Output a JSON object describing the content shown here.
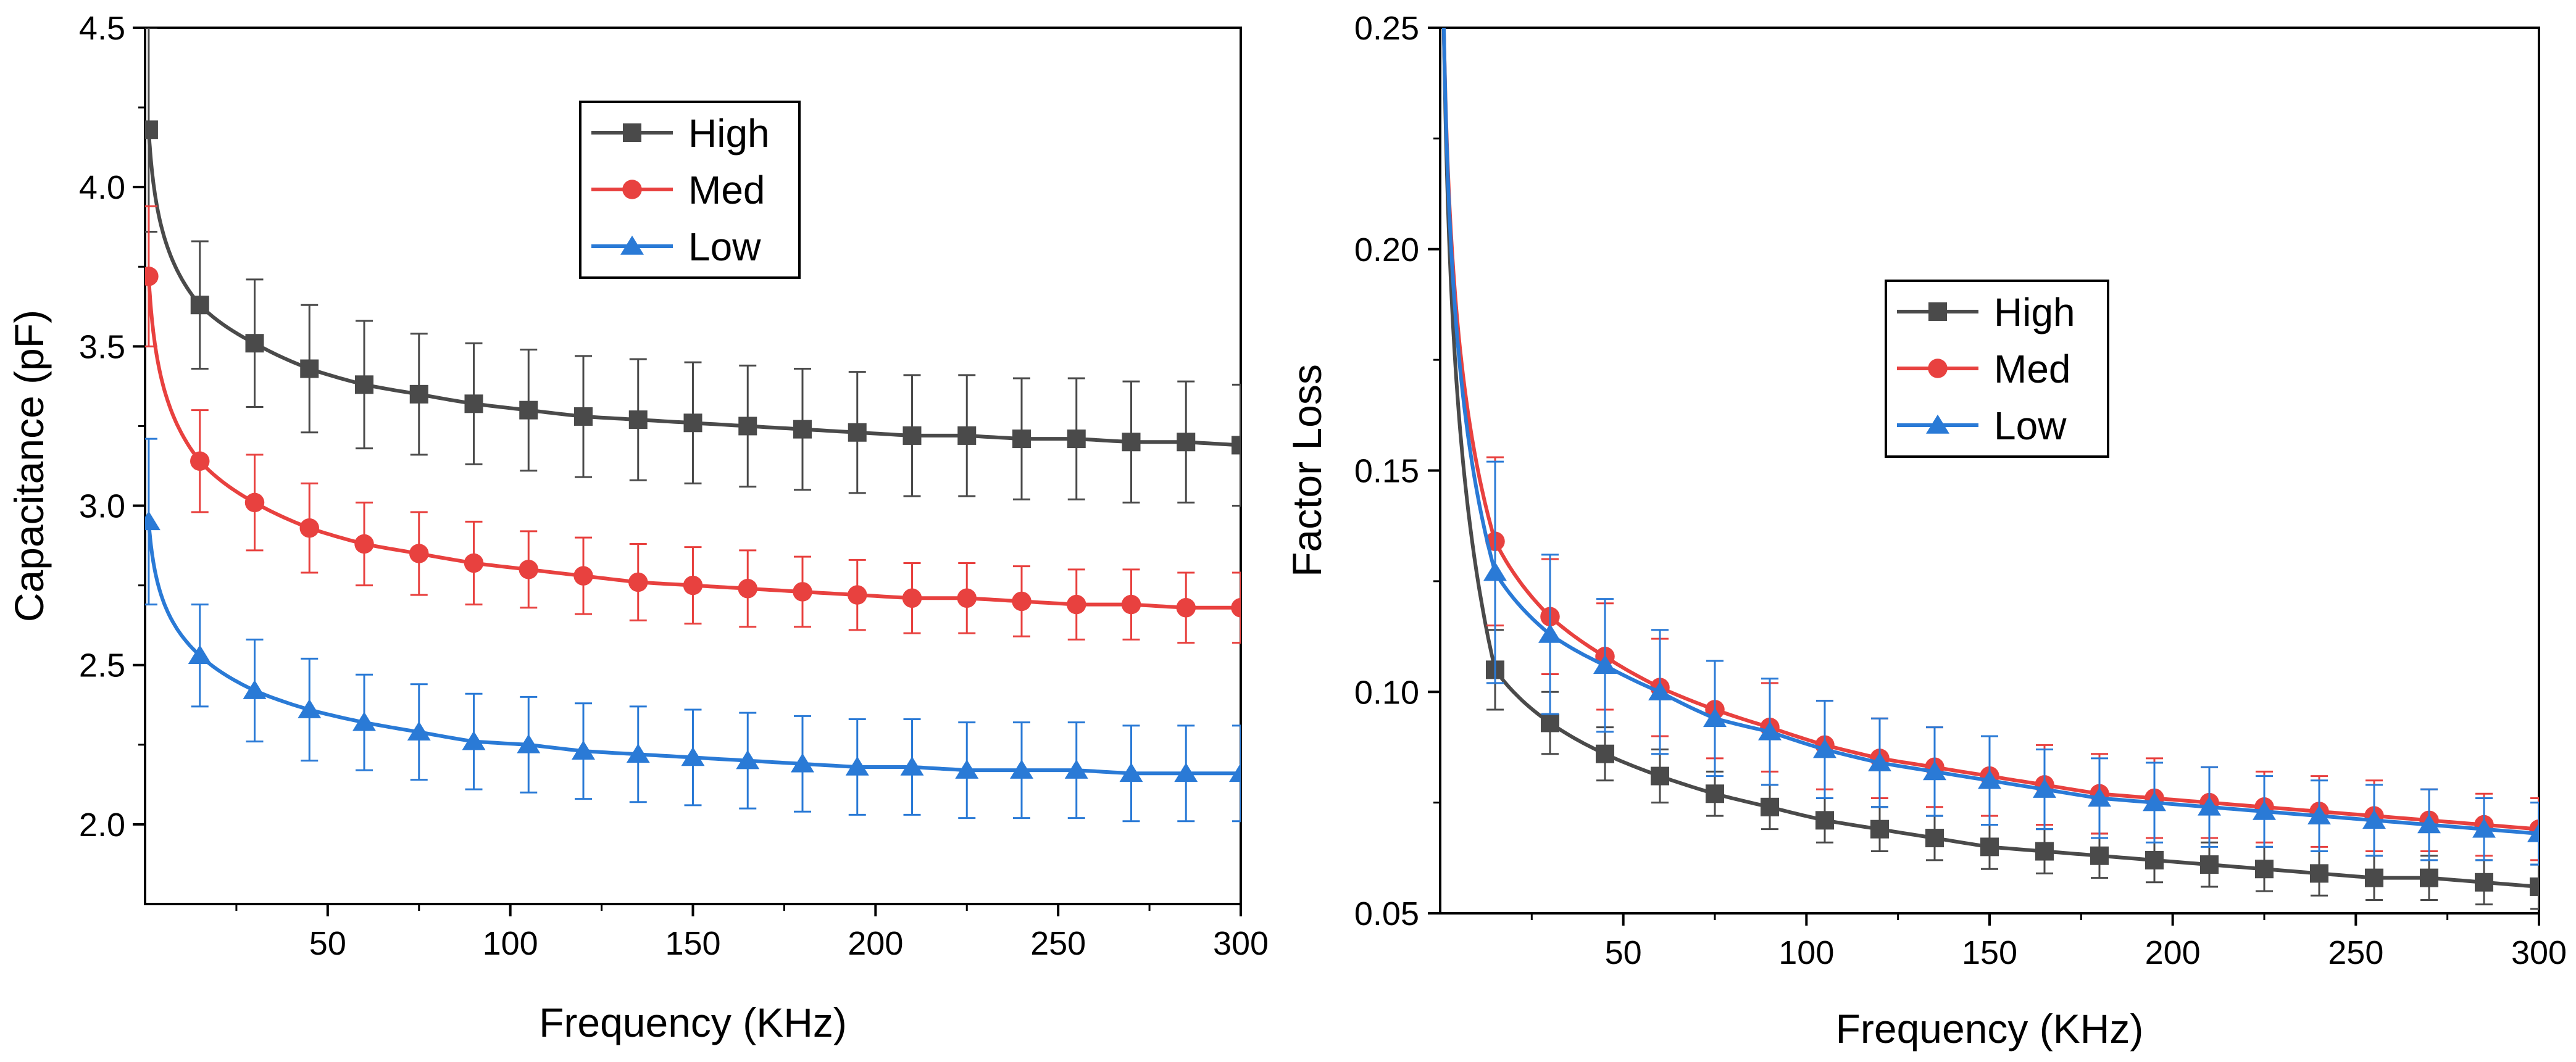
{
  "chart_data": [
    {
      "id": "capacitance",
      "type": "line",
      "title": "",
      "xlabel": "Frequency (KHz)",
      "ylabel": "Capacitance (pF)",
      "xlim": [
        0,
        300
      ],
      "ylim": [
        1.75,
        4.5
      ],
      "xticks": [
        50,
        100,
        150,
        200,
        250,
        300
      ],
      "xtick_labels": [
        "50",
        "100",
        "150",
        "200",
        "250",
        "300"
      ],
      "yticks": [
        2.0,
        2.5,
        3.0,
        3.5,
        4.0,
        4.5
      ],
      "ytick_labels": [
        "2.0",
        "2.5",
        "3.0",
        "3.5",
        "4.0",
        "4.5"
      ],
      "grid": false,
      "legend": "top-center",
      "x": [
        1,
        15,
        30,
        45,
        60,
        75,
        90,
        105,
        120,
        135,
        150,
        165,
        180,
        195,
        210,
        225,
        240,
        255,
        270,
        285,
        300
      ],
      "series": [
        {
          "name": "High",
          "color": "#4a4a4a",
          "marker": "square",
          "values": [
            4.18,
            3.63,
            3.51,
            3.43,
            3.38,
            3.35,
            3.32,
            3.3,
            3.28,
            3.27,
            3.26,
            3.25,
            3.24,
            3.23,
            3.22,
            3.22,
            3.21,
            3.21,
            3.2,
            3.2,
            3.19
          ],
          "error": [
            0.32,
            0.2,
            0.2,
            0.2,
            0.2,
            0.19,
            0.19,
            0.19,
            0.19,
            0.19,
            0.19,
            0.19,
            0.19,
            0.19,
            0.19,
            0.19,
            0.19,
            0.19,
            0.19,
            0.19,
            0.19
          ]
        },
        {
          "name": "Med",
          "color": "#e8413f",
          "marker": "circle",
          "values": [
            3.72,
            3.14,
            3.01,
            2.93,
            2.88,
            2.85,
            2.82,
            2.8,
            2.78,
            2.76,
            2.75,
            2.74,
            2.73,
            2.72,
            2.71,
            2.71,
            2.7,
            2.69,
            2.69,
            2.68,
            2.68
          ],
          "error": [
            0.22,
            0.16,
            0.15,
            0.14,
            0.13,
            0.13,
            0.13,
            0.12,
            0.12,
            0.12,
            0.12,
            0.12,
            0.11,
            0.11,
            0.11,
            0.11,
            0.11,
            0.11,
            0.11,
            0.11,
            0.11
          ]
        },
        {
          "name": "Low",
          "color": "#2a7ad6",
          "marker": "triangle",
          "values": [
            2.95,
            2.53,
            2.42,
            2.36,
            2.32,
            2.29,
            2.26,
            2.25,
            2.23,
            2.22,
            2.21,
            2.2,
            2.19,
            2.18,
            2.18,
            2.17,
            2.17,
            2.17,
            2.16,
            2.16,
            2.16
          ],
          "error": [
            0.26,
            0.16,
            0.16,
            0.16,
            0.15,
            0.15,
            0.15,
            0.15,
            0.15,
            0.15,
            0.15,
            0.15,
            0.15,
            0.15,
            0.15,
            0.15,
            0.15,
            0.15,
            0.15,
            0.15,
            0.15
          ]
        }
      ]
    },
    {
      "id": "factor-loss",
      "type": "line",
      "title": "",
      "xlabel": "Frequency (KHz)",
      "ylabel": "Factor Loss",
      "xlim": [
        0,
        300
      ],
      "ylim": [
        0.05,
        0.25
      ],
      "xticks": [
        50,
        100,
        150,
        200,
        250,
        300
      ],
      "xtick_labels": [
        "50",
        "100",
        "150",
        "200",
        "250",
        "300"
      ],
      "yticks": [
        0.05,
        0.1,
        0.15,
        0.2,
        0.25
      ],
      "ytick_labels": [
        "0.05",
        "0.10",
        "0.15",
        "0.20",
        "0.25"
      ],
      "grid": false,
      "legend": "center-left",
      "x": [
        1,
        15,
        30,
        45,
        60,
        75,
        90,
        105,
        120,
        135,
        150,
        165,
        180,
        195,
        210,
        225,
        240,
        255,
        270,
        285,
        300
      ],
      "series": [
        {
          "name": "High",
          "color": "#4a4a4a",
          "marker": "square",
          "values": [
            0.25,
            0.105,
            0.093,
            0.086,
            0.081,
            0.077,
            0.074,
            0.071,
            0.069,
            0.067,
            0.065,
            0.064,
            0.063,
            0.062,
            0.061,
            0.06,
            0.059,
            0.058,
            0.058,
            0.057,
            0.056
          ],
          "error": [
            0.0,
            0.009,
            0.007,
            0.006,
            0.006,
            0.005,
            0.005,
            0.005,
            0.005,
            0.005,
            0.005,
            0.005,
            0.005,
            0.005,
            0.005,
            0.005,
            0.005,
            0.005,
            0.005,
            0.005,
            0.005
          ]
        },
        {
          "name": "Med",
          "color": "#e8413f",
          "marker": "circle",
          "values": [
            0.25,
            0.134,
            0.117,
            0.108,
            0.101,
            0.096,
            0.092,
            0.088,
            0.085,
            0.083,
            0.081,
            0.079,
            0.077,
            0.076,
            0.075,
            0.074,
            0.073,
            0.072,
            0.071,
            0.07,
            0.069
          ],
          "error": [
            0.0,
            0.019,
            0.013,
            0.012,
            0.011,
            0.011,
            0.01,
            0.01,
            0.009,
            0.009,
            0.009,
            0.009,
            0.009,
            0.009,
            0.008,
            0.008,
            0.008,
            0.008,
            0.007,
            0.007,
            0.007
          ]
        },
        {
          "name": "Low",
          "color": "#2a7ad6",
          "marker": "triangle",
          "values": [
            0.25,
            0.127,
            0.113,
            0.106,
            0.1,
            0.094,
            0.091,
            0.087,
            0.084,
            0.082,
            0.08,
            0.078,
            0.076,
            0.075,
            0.074,
            0.073,
            0.072,
            0.071,
            0.07,
            0.069,
            0.068
          ],
          "error": [
            0.0,
            0.025,
            0.018,
            0.015,
            0.014,
            0.013,
            0.012,
            0.011,
            0.01,
            0.01,
            0.01,
            0.009,
            0.009,
            0.009,
            0.009,
            0.008,
            0.008,
            0.008,
            0.008,
            0.007,
            0.007
          ]
        }
      ]
    }
  ]
}
